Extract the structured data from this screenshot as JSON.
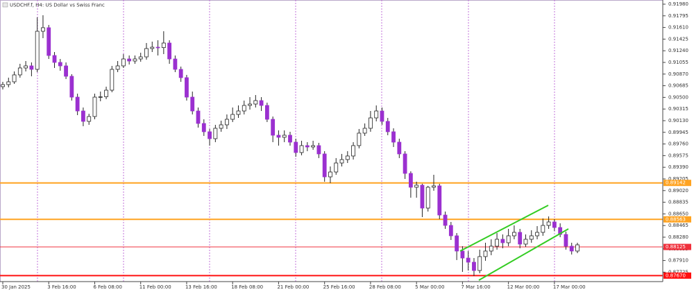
{
  "chart_data": {
    "type": "candlestick",
    "title": "USDCHF.f, H4:  US Dollar vs Swiss Franc",
    "categories": [
      "30 Jan 2025",
      null,
      null,
      null,
      null,
      null,
      null,
      null,
      "3 Feb 16:00",
      null,
      null,
      null,
      null,
      null,
      null,
      null,
      "6 Feb 08:00",
      null,
      null,
      null,
      null,
      null,
      null,
      null,
      "11 Feb 00:00",
      null,
      null,
      null,
      null,
      null,
      null,
      null,
      "13 Feb 16:00",
      null,
      null,
      null,
      null,
      null,
      null,
      null,
      "18 Feb 08:00",
      null,
      null,
      null,
      null,
      null,
      null,
      null,
      "21 Feb 00:00",
      null,
      null,
      null,
      null,
      null,
      null,
      null,
      "25 Feb 16:00",
      null,
      null,
      null,
      null,
      null,
      null,
      null,
      "28 Feb 08:00",
      null,
      null,
      null,
      null,
      null,
      null,
      null,
      "5 Mar 00:00",
      null,
      null,
      null,
      null,
      null,
      null,
      null,
      "7 Mar 16:00",
      null,
      null,
      null,
      null,
      null,
      null,
      null,
      "12 Mar 00:00",
      null,
      null,
      null,
      null,
      null,
      null,
      null,
      "17 Mar 00:00",
      null,
      null,
      null,
      null
    ],
    "open": [
      0.9067,
      0.90703,
      0.90747,
      0.90857,
      0.90967,
      0.91,
      0.90945,
      0.9155,
      0.91606,
      0.91165,
      0.91055,
      0.91,
      0.90835,
      0.90504,
      0.90284,
      0.90119,
      0.90196,
      0.90504,
      0.9051,
      0.90614,
      0.90945,
      0.91,
      0.9111,
      0.91077,
      0.9111,
      0.91143,
      0.91275,
      0.91297,
      0.9129,
      0.91363,
      0.9111,
      0.90945,
      0.90813,
      0.90504,
      0.90284,
      0.90086,
      0.89954,
      0.89844,
      0.90009,
      0.90064,
      0.90152,
      0.90229,
      0.90284,
      0.90372,
      0.90394,
      0.90449,
      0.90372,
      0.90152,
      0.89899,
      0.89866,
      0.89899,
      0.89789,
      0.89624,
      0.89734,
      0.89712,
      0.89734,
      0.89602,
      0.89238,
      0.89315,
      0.89458,
      0.89513,
      0.89569,
      0.89734,
      0.89932,
      0.90009,
      0.90174,
      0.90284,
      0.90119,
      0.89954,
      0.89789,
      0.89602,
      0.89293,
      0.89073,
      0.89106,
      0.88742,
      0.89073,
      0.89095,
      0.88632,
      0.88467,
      0.88302,
      0.8806,
      0.87949,
      0.87883,
      0.87751,
      0.87972,
      0.8806,
      0.88137,
      0.88247,
      0.88192,
      0.88302,
      0.88357,
      0.8817,
      0.88247,
      0.88302,
      0.88357,
      0.88467,
      0.88522,
      0.88434,
      0.88324,
      0.88137,
      0.8806
    ],
    "high": [
      0.90747,
      0.90813,
      0.90912,
      0.91033,
      0.91077,
      0.91055,
      0.91771,
      0.91804,
      0.9165,
      0.9122,
      0.9111,
      0.91055,
      0.90868,
      0.90559,
      0.90339,
      0.9024,
      0.90559,
      0.90592,
      0.9067,
      0.91,
      0.91077,
      0.91187,
      0.91165,
      0.91165,
      0.91209,
      0.91363,
      0.91385,
      0.91407,
      0.9155,
      0.91407,
      0.91165,
      0.90989,
      0.90857,
      0.90592,
      0.90339,
      0.90152,
      0.89998,
      0.90064,
      0.9013,
      0.90229,
      0.90339,
      0.90372,
      0.90449,
      0.90504,
      0.90537,
      0.90504,
      0.90416,
      0.90196,
      0.89976,
      0.89976,
      0.89954,
      0.89844,
      0.89811,
      0.89789,
      0.89811,
      0.89778,
      0.89646,
      0.89403,
      0.89536,
      0.89602,
      0.89646,
      0.89789,
      0.89998,
      0.90086,
      0.90284,
      0.90372,
      0.90339,
      0.90174,
      0.90009,
      0.89844,
      0.89646,
      0.89326,
      0.89161,
      0.89128,
      0.89095,
      0.89271,
      0.89128,
      0.88687,
      0.88522,
      0.88346,
      0.88137,
      0.8806,
      0.87949,
      0.88082,
      0.88192,
      0.88247,
      0.88346,
      0.88324,
      0.88412,
      0.88467,
      0.88412,
      0.88324,
      0.8839,
      0.88456,
      0.88577,
      0.8861,
      0.88566,
      0.885,
      0.88368,
      0.88192,
      0.88192
    ],
    "low": [
      0.90626,
      0.90659,
      0.90714,
      0.90813,
      0.90912,
      0.90835,
      0.90901,
      0.9144,
      0.9111,
      0.90967,
      0.90923,
      0.90791,
      0.90449,
      0.90218,
      0.90042,
      0.90064,
      0.90152,
      0.90438,
      0.90471,
      0.90581,
      0.90901,
      0.90967,
      0.91022,
      0.91033,
      0.91066,
      0.91099,
      0.9122,
      0.91165,
      0.91187,
      0.91033,
      0.90901,
      0.90747,
      0.90449,
      0.90229,
      0.9002,
      0.89888,
      0.89734,
      0.89789,
      0.89954,
      0.89998,
      0.90108,
      0.90174,
      0.90229,
      0.90306,
      0.90339,
      0.90284,
      0.90108,
      0.89789,
      0.89734,
      0.89789,
      0.89734,
      0.89558,
      0.8958,
      0.89646,
      0.89668,
      0.89536,
      0.89161,
      0.89139,
      0.89271,
      0.89403,
      0.89458,
      0.89513,
      0.8969,
      0.89888,
      0.89954,
      0.90119,
      0.90064,
      0.89899,
      0.89712,
      0.89536,
      0.89205,
      0.88907,
      0.88907,
      0.88599,
      0.88687,
      0.89018,
      0.88566,
      0.88412,
      0.88236,
      0.87917,
      0.87729,
      0.87751,
      0.87663,
      0.87707,
      0.87905,
      0.87994,
      0.88082,
      0.88104,
      0.88137,
      0.88247,
      0.88104,
      0.88126,
      0.88192,
      0.88247,
      0.88302,
      0.88412,
      0.88379,
      0.8828,
      0.88082,
      0.88005,
      0.88027
    ],
    "close": [
      0.90703,
      0.90747,
      0.90857,
      0.90967,
      0.91,
      0.90945,
      0.9155,
      0.91606,
      0.91165,
      0.91055,
      0.91,
      0.90835,
      0.90504,
      0.90284,
      0.90119,
      0.90196,
      0.90504,
      0.9051,
      0.90614,
      0.90945,
      0.91,
      0.9111,
      0.91077,
      0.9111,
      0.91143,
      0.91275,
      0.91297,
      0.9129,
      0.91363,
      0.9111,
      0.90945,
      0.90813,
      0.90504,
      0.90284,
      0.90086,
      0.89954,
      0.89844,
      0.90009,
      0.90064,
      0.90152,
      0.90229,
      0.90284,
      0.90372,
      0.90394,
      0.90449,
      0.90372,
      0.90152,
      0.89899,
      0.89866,
      0.89899,
      0.89789,
      0.89624,
      0.89734,
      0.89712,
      0.89734,
      0.89602,
      0.89238,
      0.89315,
      0.89458,
      0.89513,
      0.89569,
      0.89734,
      0.89932,
      0.90009,
      0.90174,
      0.90284,
      0.90119,
      0.89954,
      0.89789,
      0.89602,
      0.89293,
      0.89073,
      0.89106,
      0.88742,
      0.89073,
      0.89095,
      0.88632,
      0.88467,
      0.88302,
      0.8806,
      0.87949,
      0.87883,
      0.87751,
      0.87972,
      0.8806,
      0.88137,
      0.88247,
      0.88192,
      0.88302,
      0.88357,
      0.8817,
      0.88247,
      0.88302,
      0.88357,
      0.88467,
      0.88522,
      0.88434,
      0.88324,
      0.88137,
      0.8806,
      0.88159
    ],
    "up_color": "#ffffff",
    "down_color": "#9b30d0",
    "wick_color": "#222222",
    "ylim": [
      0.87575,
      0.92046
    ],
    "yticks": [
      {
        "value": 0.9198,
        "label": "0.91980"
      },
      0.91795,
      {
        "value": 0.9161,
        "label": "0.91610"
      },
      0.91425,
      {
        "value": 0.9124,
        "label": "0.91240"
      },
      0.91055,
      {
        "value": 0.9087,
        "label": "0.90870"
      },
      0.90685,
      {
        "value": 0.905,
        "label": "0.90500"
      },
      0.90315,
      {
        "value": 0.9013,
        "label": "0.90130"
      },
      0.89945,
      {
        "value": 0.8976,
        "label": "0.89760"
      },
      0.89575,
      {
        "value": 0.8939,
        "label": "0.89390"
      },
      0.89205,
      {
        "value": 0.8902,
        "label": "0.89020"
      },
      0.88835,
      {
        "value": 0.8865,
        "label": "0.88650"
      },
      0.88465,
      {
        "value": 0.8828,
        "label": "0.88280"
      },
      0.88095,
      {
        "value": 0.8791,
        "label": "0.87910"
      },
      0.87725
    ],
    "levels": [
      {
        "price": 0.89142,
        "color": "#ffa321",
        "width": 2
      },
      {
        "price": 0.88563,
        "color": "#ffa321",
        "width": 2
      },
      {
        "price": 0.88125,
        "color": "#f0303c",
        "width": 1
      },
      {
        "price": {
          "value": 0.8767,
          "label": "0.87670"
        },
        "color": "#ff1010",
        "width": 2
      }
    ]
  }
}
